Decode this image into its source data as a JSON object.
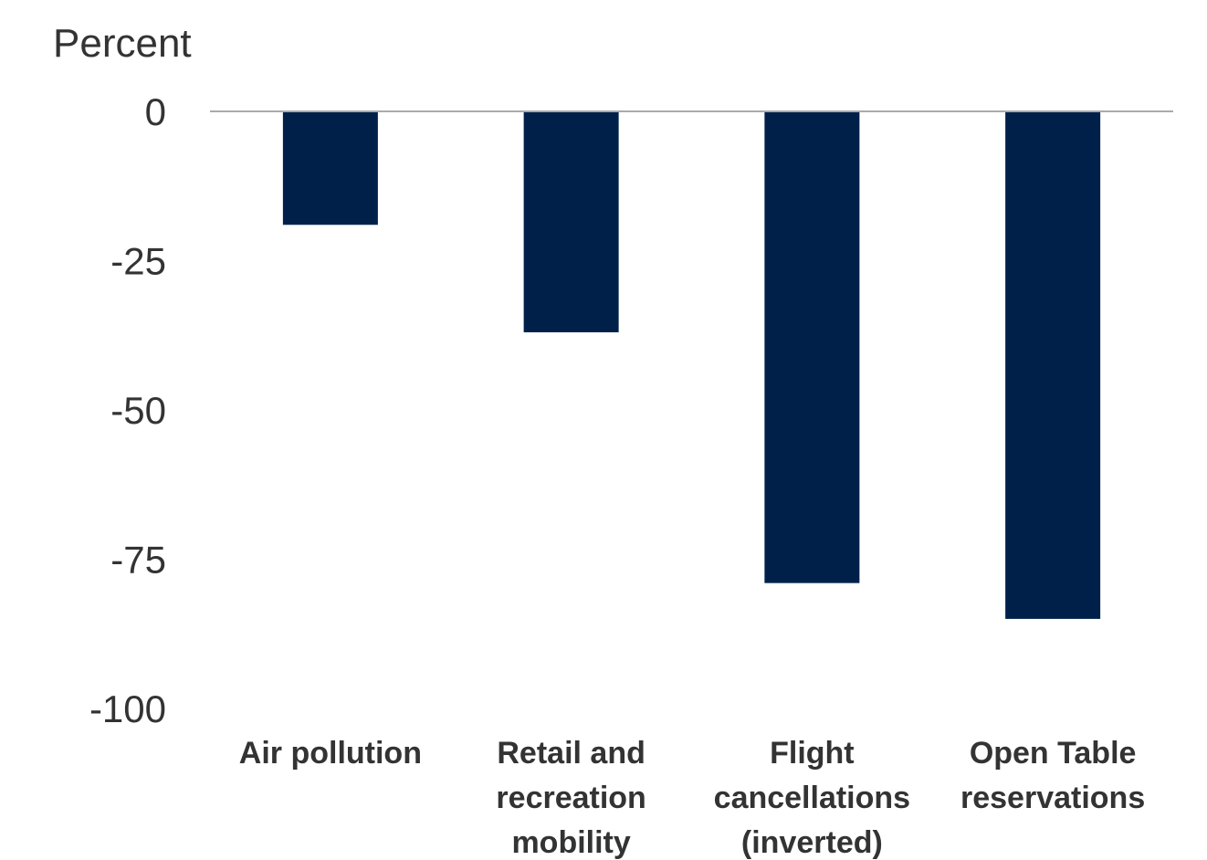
{
  "chart_data": {
    "type": "bar",
    "ylabel": "Percent",
    "categories": [
      [
        "Air pollution"
      ],
      [
        "Retail and",
        "recreation",
        "mobility"
      ],
      [
        "Flight",
        "cancellations",
        "(inverted)"
      ],
      [
        "Open Table",
        "reservations"
      ]
    ],
    "values": [
      -19,
      -37,
      -79,
      -85
    ],
    "ylim": [
      -100,
      0
    ],
    "yticks": [
      0,
      -25,
      -50,
      -75,
      -100
    ],
    "bar_color": "#00204a",
    "zero_line_color": "#aaaaaa",
    "grid": false,
    "legend": "none"
  }
}
